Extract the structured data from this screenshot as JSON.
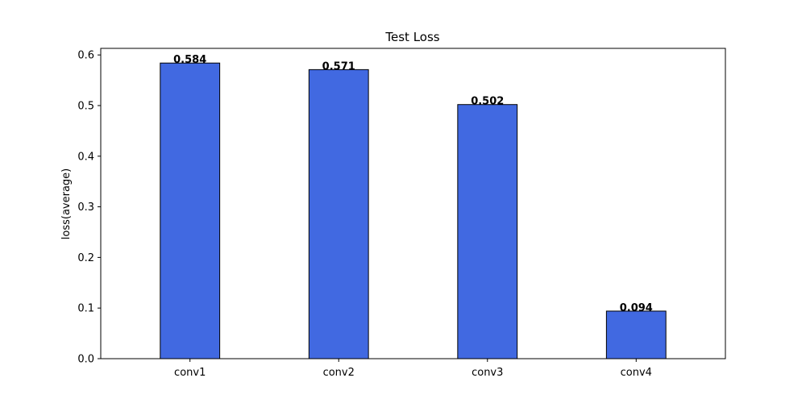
{
  "chart_data": {
    "type": "bar",
    "title": "Test Loss",
    "xlabel": "",
    "ylabel": "loss(average)",
    "categories": [
      "conv1",
      "conv2",
      "conv3",
      "conv4"
    ],
    "values": [
      0.584,
      0.571,
      0.502,
      0.094
    ],
    "data_labels": [
      "0.584",
      "0.571",
      "0.502",
      "0.094"
    ],
    "ylim": [
      0,
      0.613
    ],
    "yticks": [
      0.0,
      0.1,
      0.2,
      0.3,
      0.4,
      0.5,
      0.6
    ],
    "ytick_labels": [
      "0.0",
      "0.1",
      "0.2",
      "0.3",
      "0.4",
      "0.5",
      "0.6"
    ],
    "bar_color": "#4169e1",
    "edge_color": "#000000",
    "grid": false,
    "legend": "none"
  }
}
